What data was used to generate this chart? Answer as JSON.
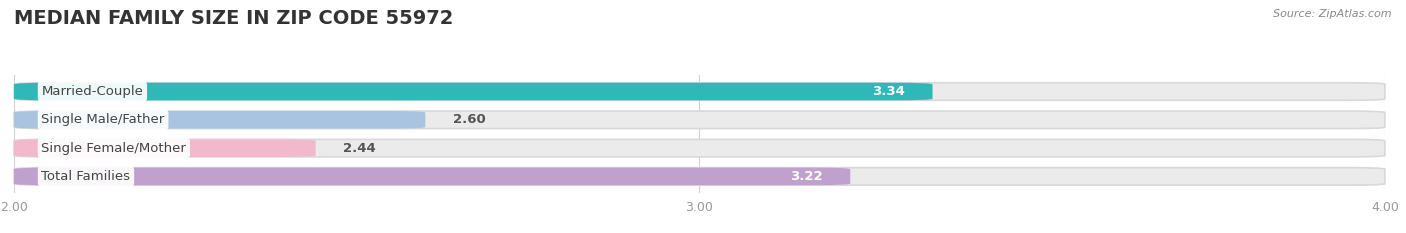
{
  "title": "MEDIAN FAMILY SIZE IN ZIP CODE 55972",
  "source": "Source: ZipAtlas.com",
  "categories": [
    "Married-Couple",
    "Single Male/Father",
    "Single Female/Mother",
    "Total Families"
  ],
  "values": [
    3.34,
    2.6,
    2.44,
    3.22
  ],
  "bar_colors": [
    "#30b8b8",
    "#a8c4e0",
    "#f2b8cc",
    "#c0a0cc"
  ],
  "xlim": [
    2.0,
    4.0
  ],
  "xticks": [
    2.0,
    3.0,
    4.0
  ],
  "background_color": "#ffffff",
  "bar_bg_color": "#ebebeb",
  "title_fontsize": 14,
  "label_fontsize": 9.5,
  "value_fontsize": 9.5,
  "tick_fontsize": 9,
  "bar_height": 0.62
}
